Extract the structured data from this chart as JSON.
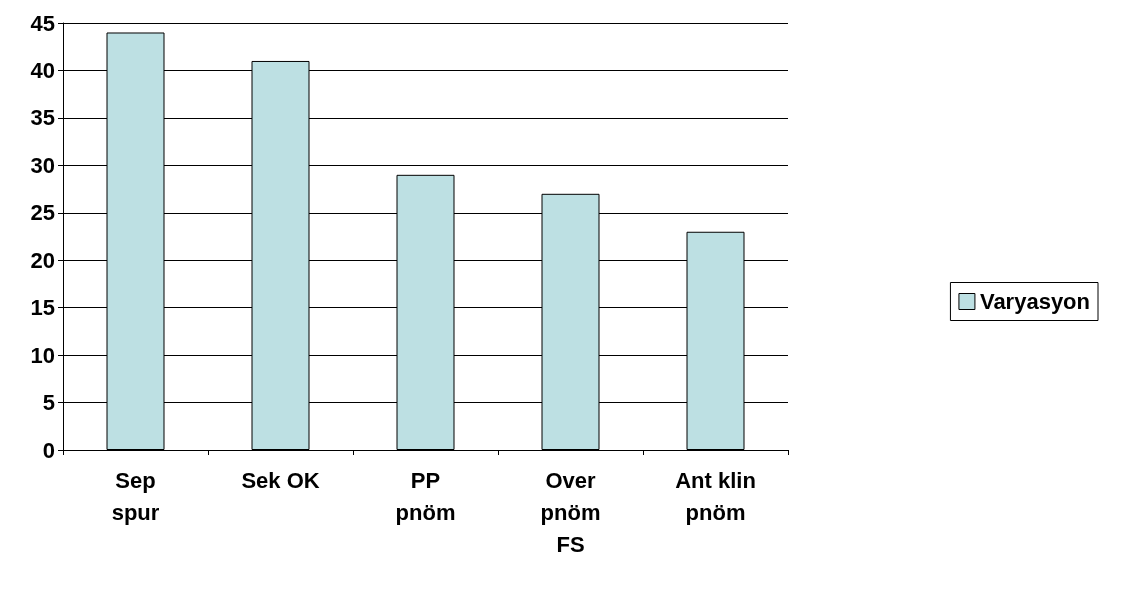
{
  "chart_data": {
    "type": "bar",
    "categories": [
      "Sep\nspur",
      "Sek OK",
      "PP\npnöm",
      "Over\npnöm\nFS",
      "Ant klin\npnöm"
    ],
    "series": [
      {
        "name": "Varyasyon",
        "color": "#bde0e3",
        "values": [
          44,
          41,
          29,
          27,
          23
        ]
      }
    ],
    "ylim": [
      0,
      45
    ],
    "yticks": [
      0,
      5,
      10,
      15,
      20,
      25,
      30,
      35,
      40,
      45
    ],
    "grid": "y",
    "legend": "right"
  }
}
